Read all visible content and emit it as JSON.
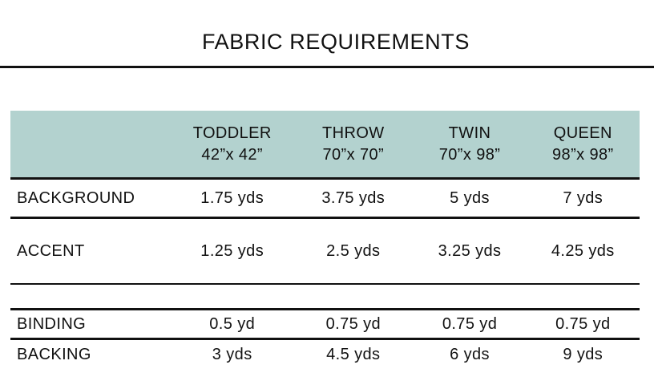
{
  "title": "FABRIC REQUIREMENTS",
  "table": {
    "columns": [
      {
        "name": "TODDLER",
        "size": "42”x 42”"
      },
      {
        "name": "THROW",
        "size": "70”x 70”"
      },
      {
        "name": "TWIN",
        "size": "70”x 98”"
      },
      {
        "name": "QUEEN",
        "size": "98”x 98”"
      }
    ],
    "rows": [
      {
        "label": "BACKGROUND",
        "values": [
          "1.75 yds",
          "3.75 yds",
          "5 yds",
          "7 yds"
        ]
      },
      {
        "label": "ACCENT",
        "values": [
          "1.25 yds",
          "2.5 yds",
          "3.25 yds",
          "4.25 yds"
        ]
      },
      {
        "label": "BINDING",
        "values": [
          "0.5 yd",
          "0.75 yd",
          "0.75 yd",
          "0.75 yd"
        ]
      },
      {
        "label": "BACKING",
        "values": [
          "3 yds",
          "4.5 yds",
          "6 yds",
          "9 yds"
        ]
      }
    ]
  },
  "colors": {
    "header_band": "#b3d2cf",
    "line": "#111111",
    "text": "#111111",
    "background": "#ffffff"
  }
}
